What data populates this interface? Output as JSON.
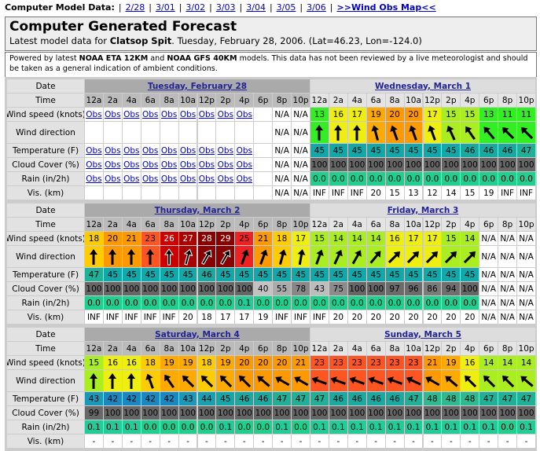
{
  "nav": {
    "label": "Computer Model Data:",
    "separator": "|",
    "links": [
      "2/28",
      "3/01",
      "3/02",
      "3/03",
      "3/04",
      "3/05",
      "3/06"
    ],
    "map_link": ">>Wind Obs Map<<"
  },
  "header": {
    "title": "Computer Generated Forecast",
    "intro_prefix": "Latest model data for ",
    "location": "Clatsop Spit",
    "intro_suffix": ". Tuesday, February 28, 2006. (Lat=46.23, Lon=-124.0)"
  },
  "notice": {
    "prefix": "Powered by latest ",
    "model1": "NOAA ETA 12KM",
    "joiner": " and ",
    "model2": "NOAA GFS 40KM",
    "suffix": " models. This data has not been reviewed by a live meteorologist and should be taken as a general indication of ambient conditions."
  },
  "row_labels": [
    "Date",
    "Time",
    "Wind speed (knots)",
    "Wind direction",
    "Temperature (F)",
    "Cloud Cover (%)",
    "Rain (in/2h)",
    "Vis. (km)"
  ],
  "times": [
    "12a",
    "2a",
    "4a",
    "6a",
    "8a",
    "10a",
    "12p",
    "2p",
    "4p",
    "6p",
    "8p",
    "10p"
  ],
  "blocks": [
    {
      "days": [
        "Tuesday, February 28",
        "Wednesday, March 1"
      ],
      "wind": [
        "Obs",
        "Obs",
        "Obs",
        "Obs",
        "Obs",
        "Obs",
        "Obs",
        "Obs",
        "Obs",
        null,
        "N/A",
        "N/A",
        13,
        16,
        17,
        19,
        20,
        20,
        17,
        15,
        15,
        13,
        11,
        11
      ],
      "direction": [
        null,
        null,
        null,
        null,
        null,
        null,
        null,
        null,
        null,
        null,
        "N/A",
        "N/A",
        0,
        0,
        0,
        -15,
        -20,
        -20,
        -20,
        -25,
        -35,
        -40,
        -45,
        -45
      ],
      "temperature": [
        "Obs",
        "Obs",
        "Obs",
        "Obs",
        "Obs",
        "Obs",
        "Obs",
        "Obs",
        "Obs",
        null,
        "N/A",
        "N/A",
        45,
        45,
        45,
        45,
        45,
        45,
        45,
        45,
        46,
        46,
        46,
        47
      ],
      "cloud": [
        "Obs",
        "Obs",
        "Obs",
        "Obs",
        "Obs",
        "Obs",
        "Obs",
        "Obs",
        "Obs",
        null,
        "N/A",
        "N/A",
        100,
        100,
        100,
        100,
        100,
        100,
        100,
        100,
        100,
        100,
        100,
        100
      ],
      "rain": [
        "Obs",
        "Obs",
        "Obs",
        "Obs",
        "Obs",
        "Obs",
        "Obs",
        "Obs",
        "Obs",
        null,
        "N/A",
        "N/A",
        "0.0",
        "0.0",
        "0.0",
        "0.0",
        "0.0",
        "0.0",
        "0.0",
        "0.0",
        "0.0",
        "0.0",
        "0.0",
        "0.0"
      ],
      "vis": [
        null,
        null,
        null,
        null,
        null,
        null,
        null,
        null,
        null,
        null,
        "N/A",
        "N/A",
        "INF",
        "INF",
        "INF",
        "20",
        "15",
        "13",
        "12",
        "14",
        "15",
        "19",
        "INF",
        "INF"
      ]
    },
    {
      "days": [
        "Thursday, March 2",
        "Friday, March 3"
      ],
      "wind": [
        18,
        20,
        21,
        23,
        26,
        27,
        28,
        29,
        25,
        21,
        18,
        17,
        15,
        14,
        14,
        14,
        16,
        17,
        17,
        15,
        14,
        "N/A",
        "N/A",
        "N/A"
      ],
      "direction": [
        0,
        0,
        0,
        0,
        0,
        15,
        30,
        30,
        20,
        20,
        15,
        10,
        20,
        25,
        30,
        40,
        45,
        45,
        45,
        45,
        45,
        "N/A",
        "N/A",
        "N/A"
      ],
      "temperature": [
        47,
        45,
        45,
        45,
        45,
        45,
        46,
        45,
        45,
        45,
        45,
        45,
        45,
        45,
        45,
        45,
        45,
        45,
        45,
        45,
        45,
        "N/A",
        "N/A",
        "N/A"
      ],
      "cloud": [
        100,
        100,
        100,
        100,
        100,
        100,
        100,
        100,
        100,
        40,
        55,
        78,
        43,
        75,
        100,
        100,
        97,
        96,
        86,
        94,
        100,
        "N/A",
        "N/A",
        "N/A"
      ],
      "rain": [
        "0.0",
        "0.0",
        "0.0",
        "0.0",
        "0.0",
        "0.0",
        "0.0",
        "0.0",
        "0.1",
        "0.0",
        "0.0",
        "0.0",
        "0.0",
        "0.0",
        "0.0",
        "0.0",
        "0.0",
        "0.0",
        "0.0",
        "0.0",
        "0.0",
        "N/A",
        "N/A",
        "N/A"
      ],
      "vis": [
        "INF",
        "INF",
        "INF",
        "INF",
        "INF",
        "20",
        "18",
        "17",
        "17",
        "19",
        "INF",
        "INF",
        "INF",
        "20",
        "20",
        "20",
        "20",
        "20",
        "20",
        "20",
        "20",
        "N/A",
        "N/A",
        "N/A"
      ]
    },
    {
      "days": [
        "Saturday, March 4",
        "Sunday, March 5"
      ],
      "wind": [
        15,
        16,
        16,
        18,
        19,
        19,
        18,
        19,
        20,
        20,
        20,
        21,
        23,
        23,
        23,
        23,
        23,
        23,
        21,
        19,
        16,
        14,
        14,
        14
      ],
      "direction": [
        0,
        0,
        0,
        -20,
        -35,
        -45,
        -45,
        -45,
        -45,
        -50,
        -60,
        -60,
        -70,
        -70,
        -70,
        -70,
        -70,
        -65,
        -60,
        -50,
        -45,
        -45,
        -45,
        -50
      ],
      "temperature": [
        43,
        42,
        42,
        42,
        42,
        43,
        44,
        45,
        46,
        46,
        47,
        47,
        47,
        46,
        46,
        46,
        46,
        47,
        48,
        48,
        48,
        47,
        47,
        47
      ],
      "cloud": [
        99,
        100,
        100,
        100,
        100,
        100,
        100,
        100,
        100,
        100,
        100,
        100,
        100,
        100,
        100,
        100,
        100,
        100,
        100,
        100,
        100,
        100,
        100,
        100
      ],
      "rain": [
        "0.1",
        "0.1",
        "0.1",
        "0.0",
        "0.0",
        "0.0",
        "0.0",
        "0.1",
        "0.0",
        "0.0",
        "0.1",
        "0.0",
        "0.1",
        "0.1",
        "0.1",
        "0.1",
        "0.1",
        "0.1",
        "0.1",
        "0.1",
        "0.1",
        "0.1",
        "0.0",
        "0.1"
      ],
      "vis": [
        "-",
        "-",
        "-",
        "-",
        "-",
        "-",
        "-",
        "-",
        "-",
        "-",
        "-",
        "-",
        "-",
        "-",
        "-",
        "-",
        "-",
        "-",
        "-",
        "-",
        "-",
        "-",
        "-",
        "-"
      ]
    }
  ]
}
